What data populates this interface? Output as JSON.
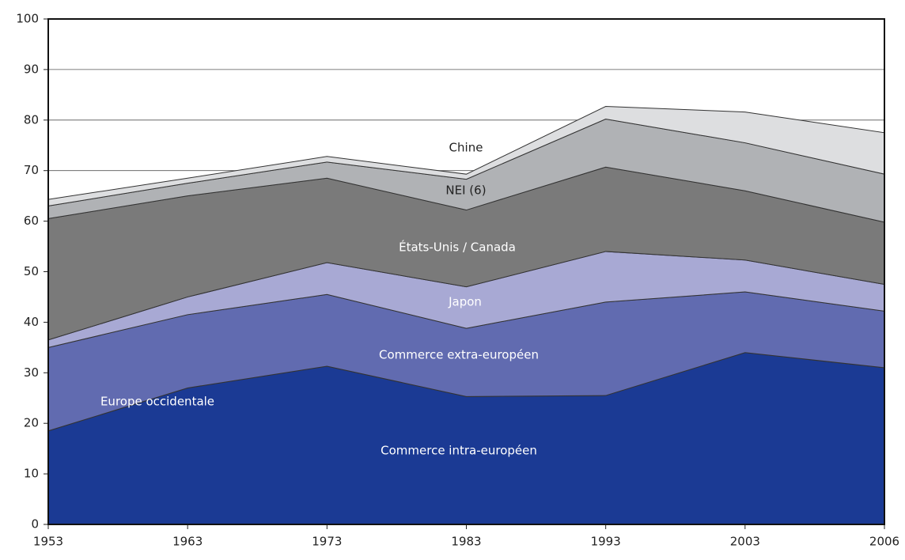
{
  "chart_data": {
    "type": "stacked_area",
    "categories": [
      "1953",
      "1963",
      "1973",
      "1983",
      "1993",
      "2003",
      "2006"
    ],
    "series": [
      {
        "name": "Commerce intra-européen",
        "color": "#1b3a94",
        "values": [
          18.5,
          27,
          31.3,
          25.3,
          25.5,
          34,
          31
        ]
      },
      {
        "name": "Commerce extra-européen",
        "color": "#616bb0",
        "values": [
          16.5,
          14.5,
          14.2,
          13.5,
          18.5,
          12,
          11.2
        ]
      },
      {
        "name": "Japon",
        "color": "#a8a9d4",
        "values": [
          1.5,
          3.5,
          6.3,
          8.2,
          10,
          6.3,
          5.3
        ]
      },
      {
        "name": "États-Unis / Canada",
        "color": "#7a7a7a",
        "values": [
          24,
          20,
          16.7,
          15.2,
          16.7,
          13.7,
          12.3
        ]
      },
      {
        "name": "NEI (6)",
        "color": "#b0b2b5",
        "values": [
          2.5,
          2.5,
          3.2,
          6.1,
          9.5,
          9.5,
          9.5
        ]
      },
      {
        "name": "Chine",
        "color": "#dddee0",
        "values": [
          1.3,
          1,
          1.1,
          1,
          2.5,
          6.1,
          8.2
        ]
      }
    ],
    "annotations": [
      "Europe occidentale"
    ],
    "ylim": [
      0,
      100
    ],
    "yticks": [
      0,
      10,
      20,
      30,
      40,
      50,
      60,
      70,
      80,
      90,
      100
    ],
    "grid": true
  }
}
